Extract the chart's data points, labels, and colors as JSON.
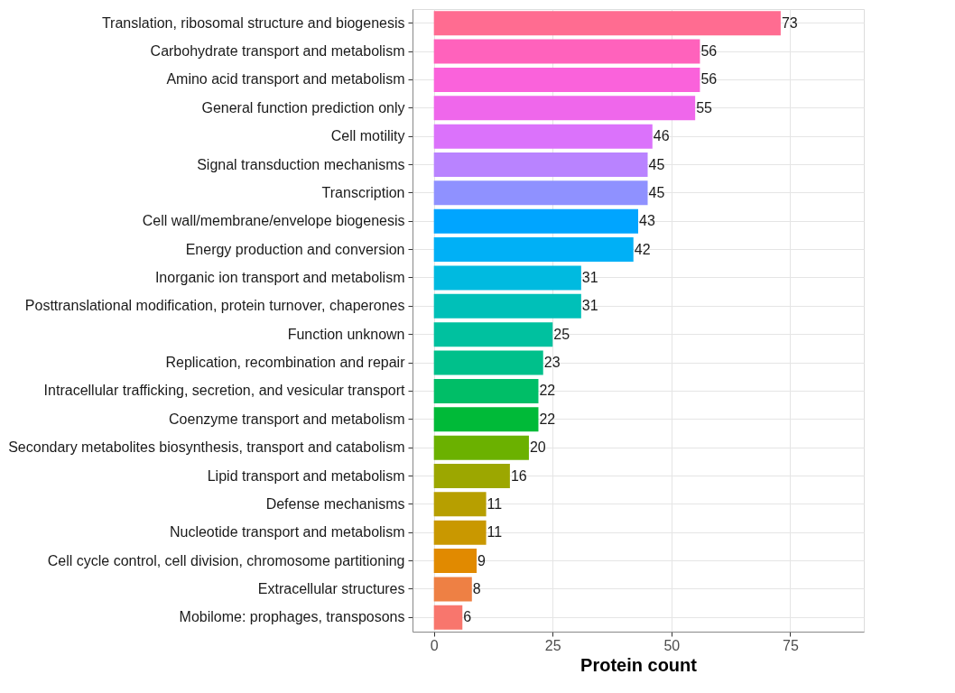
{
  "chart_data": {
    "type": "bar",
    "orientation": "horizontal",
    "xlabel": "Protein count",
    "categories": [
      "Translation, ribosomal structure and biogenesis",
      "Carbohydrate transport and metabolism",
      "Amino acid transport and metabolism",
      "General function prediction only",
      "Cell motility",
      "Signal transduction mechanisms",
      "Transcription",
      "Cell wall/membrane/envelope biogenesis",
      "Energy production and conversion",
      "Inorganic ion transport and metabolism",
      "Posttranslational modification, protein turnover, chaperones",
      "Function unknown",
      "Replication, recombination and repair",
      "Intracellular trafficking, secretion, and vesicular transport",
      "Coenzyme transport and metabolism",
      "Secondary metabolites biosynthesis, transport and catabolism",
      "Lipid transport and metabolism",
      "Defense mechanisms",
      "Nucleotide transport and metabolism",
      "Cell cycle control, cell division, chromosome partitioning",
      "Extracellular structures",
      "Mobilome: prophages, transposons"
    ],
    "values": [
      73,
      56,
      56,
      55,
      46,
      45,
      45,
      43,
      42,
      31,
      31,
      25,
      23,
      22,
      22,
      20,
      16,
      11,
      11,
      9,
      8,
      6
    ],
    "colors": [
      "#ff6c91",
      "#ff62bc",
      "#fa62db",
      "#ef67eb",
      "#db72fb",
      "#b983ff",
      "#8f91ff",
      "#00a5ff",
      "#00b0f6",
      "#00bae0",
      "#00c0b8",
      "#00c19f",
      "#00c08b",
      "#00be67",
      "#00ba38",
      "#6bb100",
      "#9ca700",
      "#b79f00",
      "#c99800",
      "#e18a00",
      "#ee8044",
      "#f8766d"
    ],
    "xlim": [
      -4.5,
      90.5
    ],
    "xticks": [
      0,
      25,
      50,
      75
    ],
    "grid": true,
    "data_labels": true
  }
}
